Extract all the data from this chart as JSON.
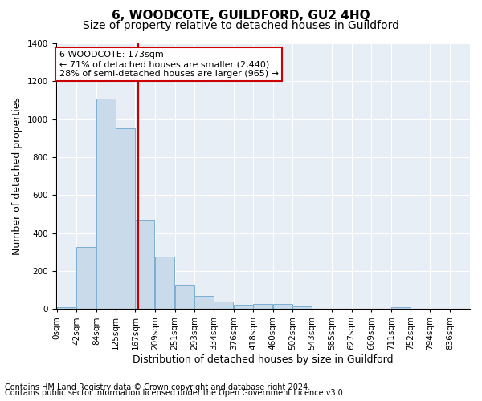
{
  "title": "6, WOODCOTE, GUILDFORD, GU2 4HQ",
  "subtitle": "Size of property relative to detached houses in Guildford",
  "xlabel": "Distribution of detached houses by size in Guildford",
  "ylabel": "Number of detached properties",
  "footer_line1": "Contains HM Land Registry data © Crown copyright and database right 2024.",
  "footer_line2": "Contains public sector information licensed under the Open Government Licence v3.0.",
  "bin_labels": [
    "0sqm",
    "42sqm",
    "84sqm",
    "125sqm",
    "167sqm",
    "209sqm",
    "251sqm",
    "293sqm",
    "334sqm",
    "376sqm",
    "418sqm",
    "460sqm",
    "502sqm",
    "543sqm",
    "585sqm",
    "627sqm",
    "669sqm",
    "711sqm",
    "752sqm",
    "794sqm",
    "836sqm"
  ],
  "bar_values": [
    10,
    325,
    1110,
    950,
    470,
    275,
    130,
    70,
    40,
    22,
    25,
    25,
    15,
    0,
    0,
    0,
    0,
    10,
    0,
    0,
    0
  ],
  "bar_color": "#c9daea",
  "bar_edge_color": "#7bafd4",
  "red_line_x": 173,
  "bin_width": 41,
  "bin_starts": [
    0,
    42,
    84,
    125,
    167,
    209,
    251,
    293,
    334,
    376,
    418,
    460,
    502,
    543,
    585,
    627,
    669,
    711,
    752,
    794,
    836
  ],
  "annotation_text": "6 WOODCOTE: 173sqm\n← 71% of detached houses are smaller (2,440)\n28% of semi-detached houses are larger (965) →",
  "annotation_box_facecolor": "#ffffff",
  "annotation_box_edgecolor": "#cc0000",
  "ylim": [
    0,
    1400
  ],
  "yticks": [
    0,
    200,
    400,
    600,
    800,
    1000,
    1200,
    1400
  ],
  "title_fontsize": 11,
  "subtitle_fontsize": 10,
  "xlabel_fontsize": 9,
  "ylabel_fontsize": 9,
  "tick_fontsize": 7.5,
  "annot_fontsize": 8,
  "footer_fontsize": 7
}
